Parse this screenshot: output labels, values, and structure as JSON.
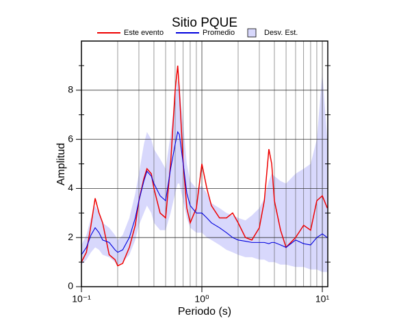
{
  "chart_data": {
    "type": "line",
    "title": "Sitio PQUE",
    "xlabel": "Periodo (s)",
    "ylabel": "Amplitud",
    "xscale": "log",
    "xlim": [
      0.1,
      11.1
    ],
    "ylim": [
      0,
      10
    ],
    "xticks": [
      {
        "value": 0.1,
        "label": "10⁻¹"
      },
      {
        "value": 1,
        "label": "10⁰"
      },
      {
        "value": 10,
        "label": "10¹"
      }
    ],
    "x_minor_ticks": [
      0.2,
      0.3,
      0.4,
      0.5,
      0.6,
      0.7,
      0.8,
      0.9,
      2,
      3,
      4,
      5,
      6,
      7,
      8,
      9
    ],
    "yticks": [
      0,
      2,
      4,
      6,
      8
    ],
    "y_minor_ticks": [
      1,
      3,
      5,
      7,
      9
    ],
    "grid": true,
    "x": [
      0.1,
      0.11,
      0.12,
      0.13,
      0.14,
      0.15,
      0.17,
      0.19,
      0.2,
      0.22,
      0.25,
      0.28,
      0.3,
      0.33,
      0.35,
      0.38,
      0.4,
      0.45,
      0.5,
      0.55,
      0.6,
      0.63,
      0.65,
      0.7,
      0.75,
      0.8,
      0.9,
      1.0,
      1.1,
      1.2,
      1.4,
      1.6,
      1.8,
      2.0,
      2.3,
      2.6,
      3.0,
      3.3,
      3.6,
      3.8,
      4.0,
      4.5,
      5,
      6,
      7,
      8,
      9,
      10,
      11
    ],
    "series": [
      {
        "name": "Este evento",
        "color": "#ee0000",
        "values": [
          1.0,
          1.4,
          2.5,
          3.6,
          3.0,
          2.6,
          1.3,
          1.1,
          0.85,
          0.95,
          1.6,
          2.5,
          3.5,
          4.4,
          4.8,
          4.6,
          4.0,
          3.0,
          2.8,
          5.0,
          8.0,
          9.0,
          8.0,
          5.0,
          3.2,
          2.6,
          3.2,
          5.0,
          4.0,
          3.3,
          2.8,
          2.8,
          3.0,
          2.6,
          2.0,
          1.9,
          2.4,
          3.5,
          5.6,
          5.0,
          3.5,
          2.3,
          1.6,
          2.0,
          2.5,
          2.3,
          3.5,
          3.7,
          3.2
        ]
      },
      {
        "name": "Promedio",
        "color": "#0000dd",
        "values": [
          1.3,
          1.6,
          2.1,
          2.4,
          2.2,
          1.9,
          1.8,
          1.5,
          1.4,
          1.5,
          2.0,
          2.8,
          3.5,
          4.3,
          4.7,
          4.5,
          4.2,
          3.7,
          3.5,
          4.8,
          5.8,
          6.3,
          6.2,
          5.0,
          3.8,
          3.3,
          3.0,
          3.0,
          2.8,
          2.6,
          2.4,
          2.2,
          2.0,
          1.9,
          1.85,
          1.8,
          1.8,
          1.8,
          1.75,
          1.8,
          1.8,
          1.7,
          1.6,
          1.9,
          1.75,
          1.7,
          2.0,
          2.15,
          2.0
        ]
      },
      {
        "name": "Desv. Est.",
        "color": "#d8d8fc",
        "lower": [
          0.9,
          1.1,
          1.4,
          1.6,
          1.5,
          1.3,
          1.2,
          1.0,
          0.9,
          1.0,
          1.3,
          1.9,
          2.5,
          3.0,
          3.3,
          3.0,
          2.6,
          2.3,
          2.3,
          3.0,
          3.8,
          4.2,
          4.2,
          3.5,
          2.8,
          2.4,
          2.2,
          2.2,
          2.0,
          1.9,
          1.7,
          1.5,
          1.4,
          1.3,
          1.2,
          1.2,
          1.1,
          1.1,
          1.0,
          1.0,
          1.0,
          0.9,
          0.9,
          0.8,
          0.8,
          0.7,
          0.7,
          0.6,
          0.6
        ],
        "upper": [
          1.7,
          2.1,
          2.8,
          3.3,
          3.0,
          2.6,
          2.4,
          2.1,
          1.9,
          2.1,
          2.8,
          3.8,
          4.6,
          5.8,
          6.3,
          6.0,
          5.6,
          5.2,
          4.8,
          6.2,
          7.8,
          8.4,
          8.2,
          6.6,
          5.0,
          4.3,
          4.0,
          4.1,
          3.8,
          3.4,
          3.2,
          3.0,
          2.9,
          2.8,
          2.7,
          2.9,
          3.2,
          3.6,
          4.3,
          4.6,
          4.5,
          4.3,
          4.2,
          4.6,
          4.8,
          5.0,
          6.0,
          8.7,
          6.0
        ]
      }
    ]
  }
}
